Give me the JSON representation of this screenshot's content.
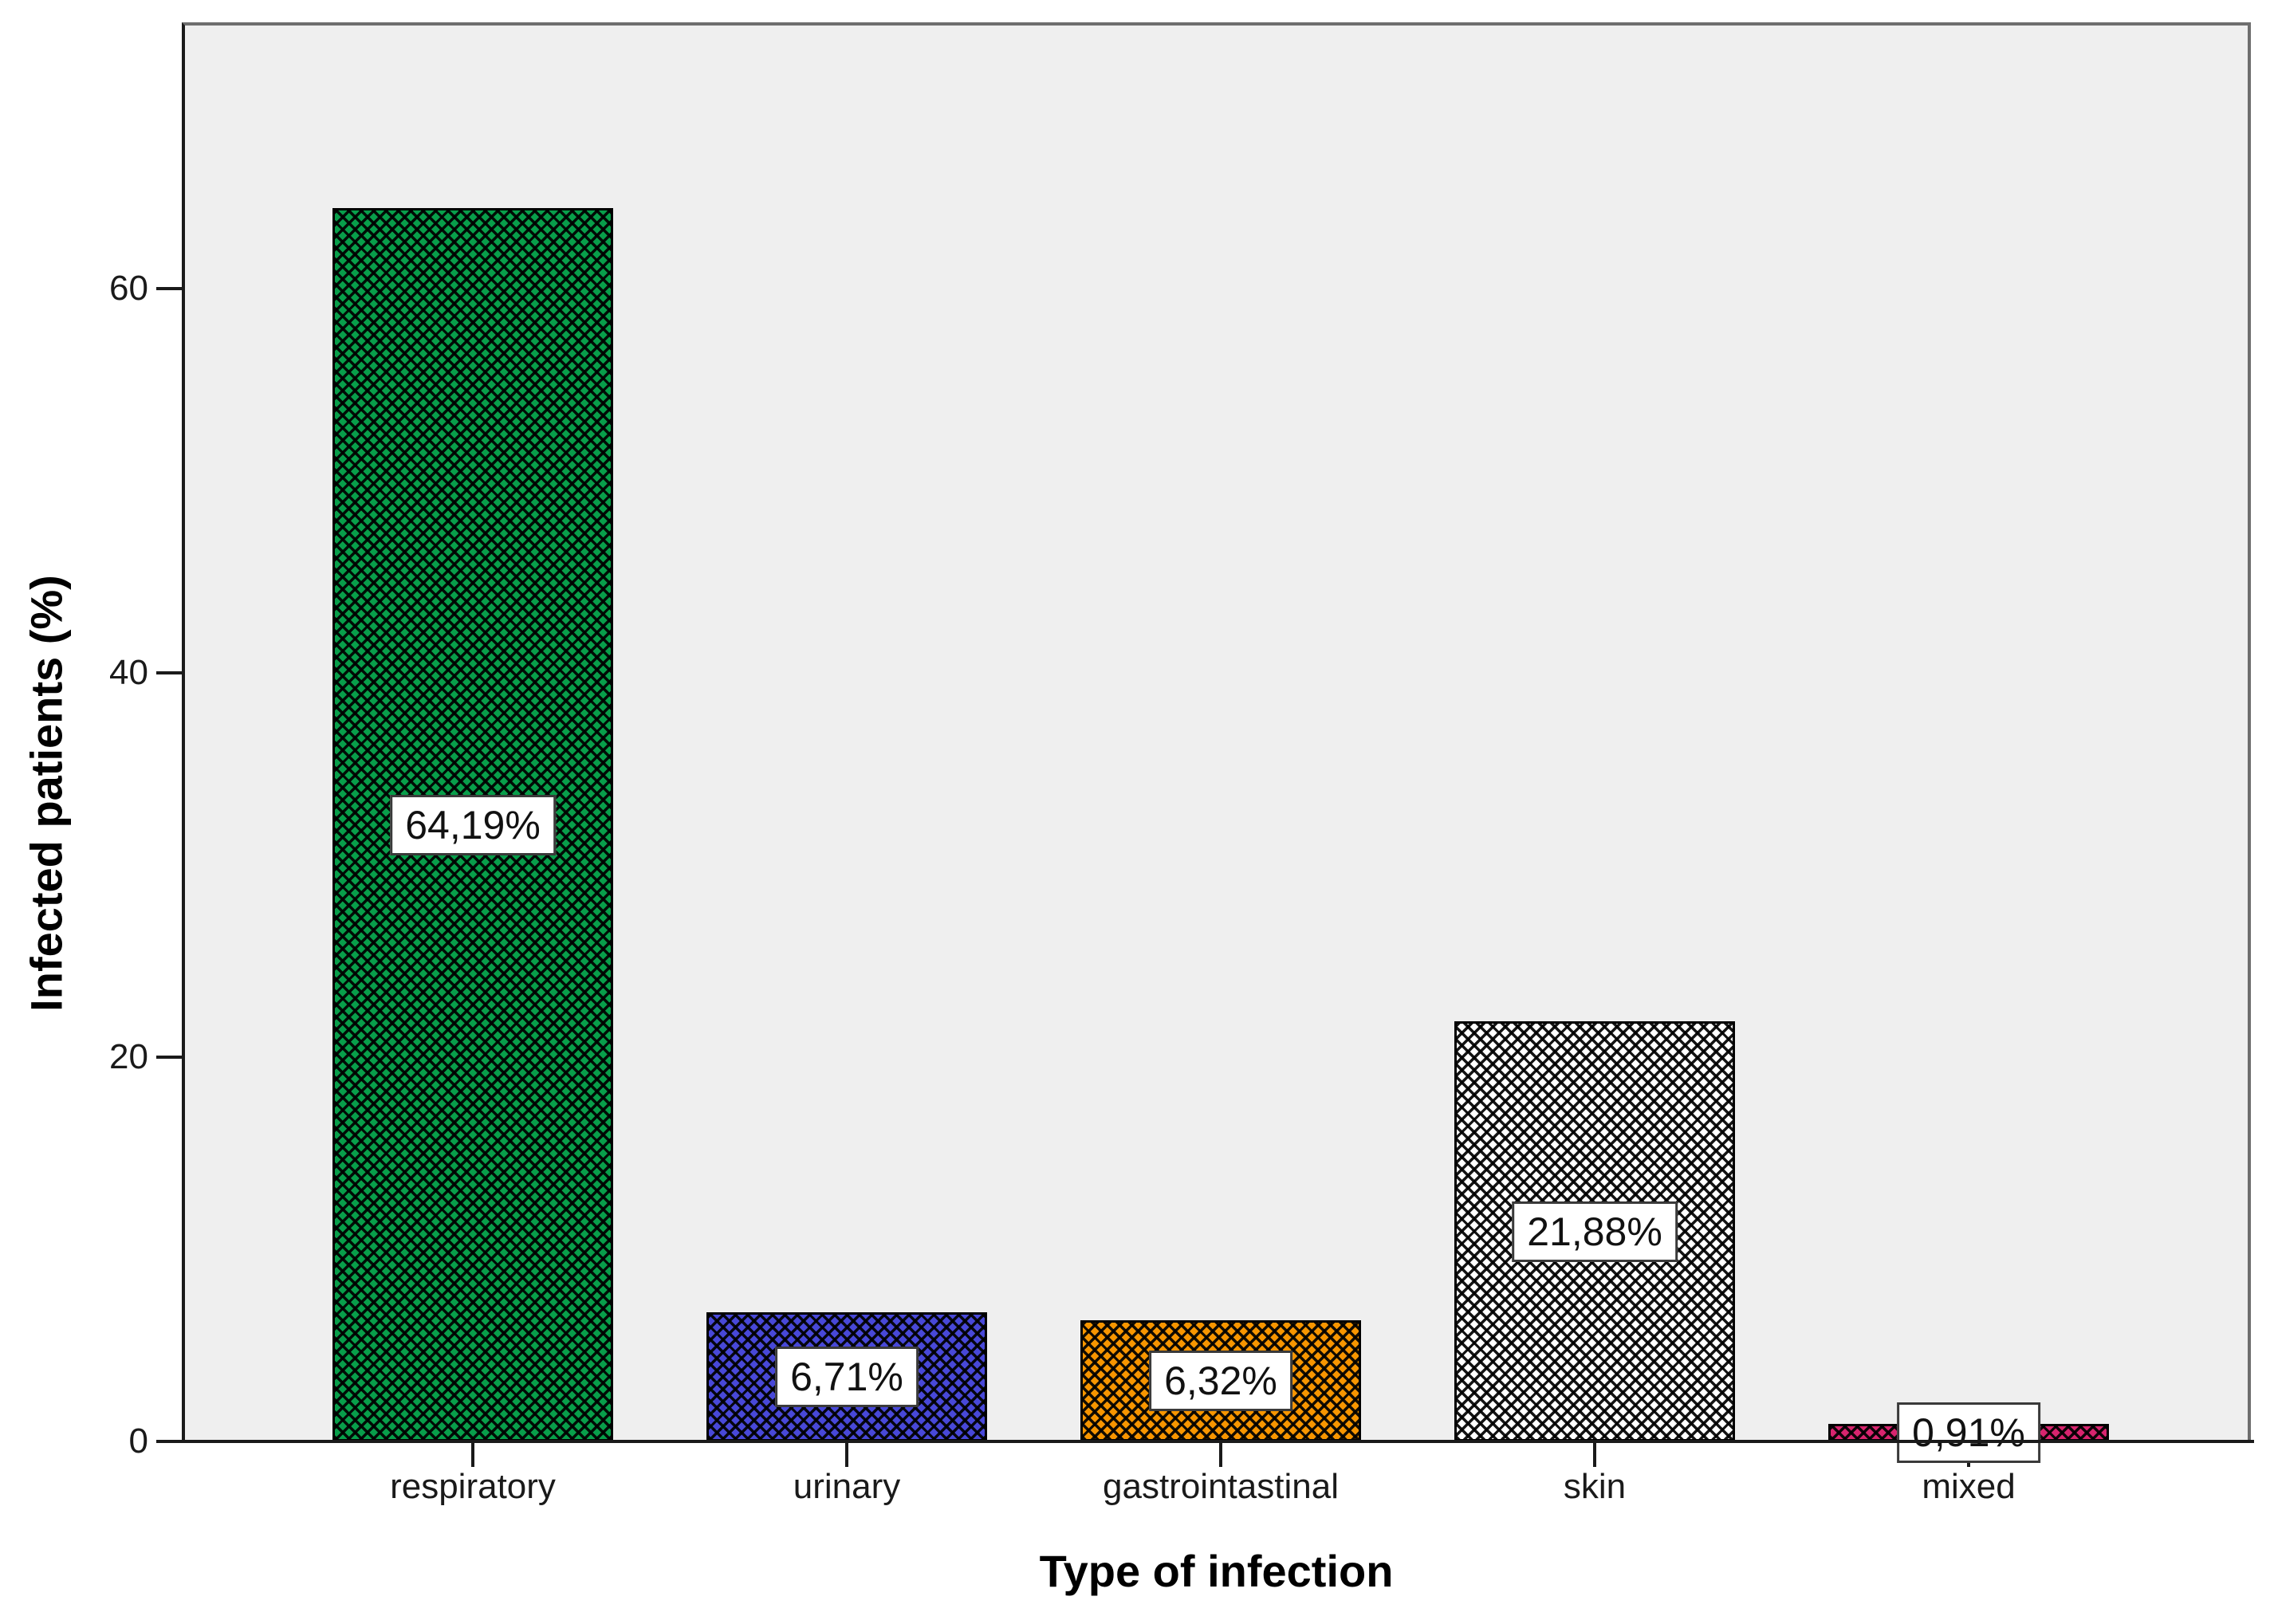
{
  "chart_data": {
    "type": "bar",
    "title": "",
    "xlabel": "Type of infection",
    "ylabel": "Infected patients (%)",
    "categories": [
      "respiratory",
      "urinary",
      "gastrointastinal",
      "skin",
      "mixed"
    ],
    "values": [
      64.19,
      6.71,
      6.32,
      21.88,
      0.91
    ],
    "value_labels": [
      "64,19%",
      "6,71%",
      "6,32%",
      "21,88%",
      "0,91%"
    ],
    "bar_colors": [
      "#089e4a",
      "#4848d8",
      "#f79500",
      "#ffffff",
      "#d8246e"
    ],
    "pattern": "diagonal-crosshatch",
    "yticks": [
      0,
      20,
      40,
      60
    ],
    "ylim": [
      0,
      74
    ],
    "grid": false,
    "legend": "none",
    "plot_background": "#efefef",
    "decimal_separator": ","
  }
}
